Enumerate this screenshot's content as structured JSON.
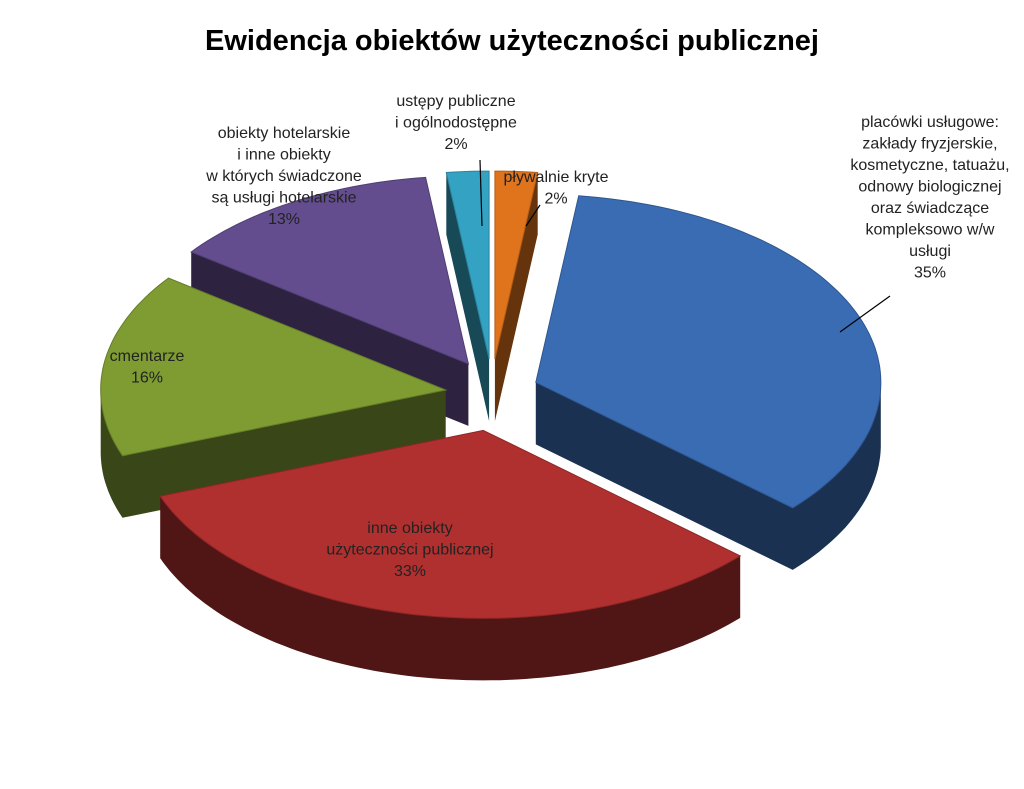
{
  "chart_data": {
    "type": "pie",
    "title": "Ewidencja obiektów użyteczności publicznej",
    "categories": [
      "pływalnie kryte",
      "placówki usługowe:\nzakłady fryzjerskie,\nkosmetyczne, tatuażu,\nodnowy biologicznej\noraz świadczące\nkompleksowo w/w\nusługi",
      "inne obiekty\nużyteczności publicznej",
      "cmentarze",
      "obiekty hotelarskie\ni inne obiekty\nw których świadczone\nsą usługi hotelarskie",
      "ustępy publiczne\ni ogólnodostępne"
    ],
    "values": [
      2,
      35,
      33,
      16,
      13,
      2
    ],
    "value_labels": [
      "2%",
      "35%",
      "33%",
      "16%",
      "13%",
      "2%"
    ],
    "colors": [
      "#e0741c",
      "#3a6cb4",
      "#b0302f",
      "#7e9c32",
      "#634d8e",
      "#34a2c2"
    ]
  }
}
